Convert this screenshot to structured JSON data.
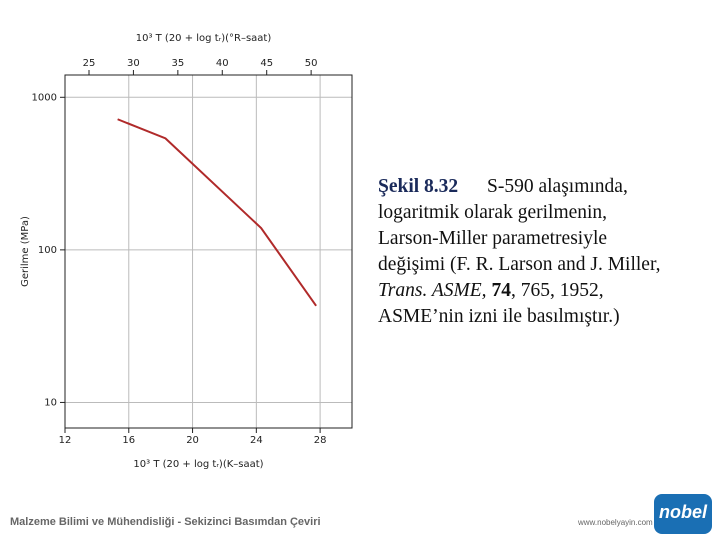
{
  "chart_data": {
    "type": "line",
    "x_label": "10³ T (20 + log tᵣ)(K–saat)",
    "x2_label": "10³ T (20 + log tᵣ)(°R–saat)",
    "y_label": "Gerilme (MPa)",
    "x": [
      15.3,
      18.3,
      24.3,
      27.75
    ],
    "series": [
      {
        "name": "S-590",
        "color": "#b02a2a",
        "values": [
          718,
          538,
          139,
          43
        ]
      }
    ],
    "xlim": [
      12,
      30
    ],
    "xticks": [
      12,
      16,
      20,
      24,
      28
    ],
    "x2lim": [
      22.3,
      54.6
    ],
    "x2ticks": [
      25,
      30,
      35,
      40,
      45,
      50
    ],
    "ylim": [
      6.8,
      1400
    ],
    "yticks": [
      10,
      100,
      1000
    ],
    "log_y": true,
    "grid": true
  },
  "caption": {
    "label": "Şekil 8.32",
    "line1": "S-590 alaşımında,",
    "line2": "logaritmik olarak gerilmenin,",
    "line3": "Larson-Miller parametresiyle",
    "line4": "değişimi (F. R. Larson and J. Miller,",
    "journal": "Trans. ASME,",
    "volume": "74",
    "rest": ", 765, 1952,",
    "line6": "ASME’nin izni ile basılmıştır.)"
  },
  "footer": {
    "book": "Malzeme Bilimi ve Mühendisliği - Sekizinci Basımdan Çeviri",
    "site": "www.nobelyayin.com",
    "logo": "nobel"
  }
}
